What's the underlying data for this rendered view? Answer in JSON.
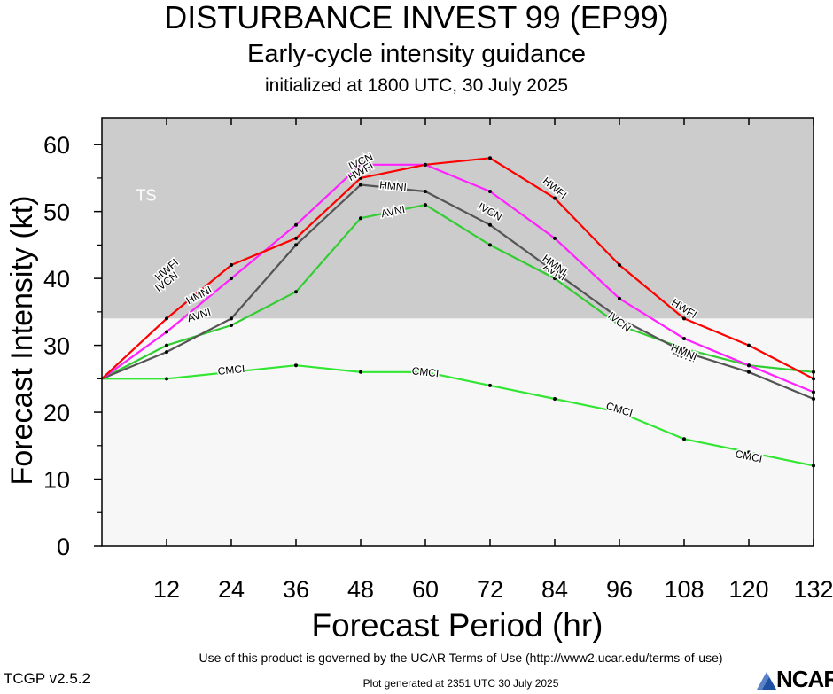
{
  "header": {
    "title": "DISTURBANCE INVEST 99 (EP99)",
    "subtitle": "Early-cycle intensity guidance",
    "initialized": "initialized at 1800 UTC, 30 July 2025"
  },
  "footer": {
    "terms": "Use of this product is governed by the UCAR Terms of Use (http://www2.ucar.edu/terms-of-use)",
    "version": "TCGP v2.5.2",
    "plot_generated": "Plot generated at 2351 UTC   30 July 2025",
    "logo_text": "NCAR",
    "logo_icon": "ncar-logo-icon"
  },
  "chart_data": {
    "type": "line",
    "xlabel": "Forecast Period (hr)",
    "ylabel": "Forecast Intensity (kt)",
    "xlim": [
      0,
      132
    ],
    "ylim": [
      0,
      64
    ],
    "xticks": [
      12,
      24,
      36,
      48,
      60,
      72,
      84,
      96,
      108,
      120,
      132
    ],
    "yticks": [
      0,
      10,
      20,
      30,
      40,
      50,
      60
    ],
    "grid": false,
    "legend": "none (series labeled inline)",
    "bands": [
      {
        "label": "TS",
        "from": 34,
        "to": 64,
        "color": "#cccccc"
      },
      {
        "label": "",
        "from": 0,
        "to": 34,
        "color": "#f7f7f7"
      }
    ],
    "series": [
      {
        "name": "CMCI",
        "color": "#33e633",
        "x": [
          0,
          12,
          24,
          36,
          48,
          60,
          72,
          84,
          96,
          108,
          120,
          132
        ],
        "y": [
          25,
          25,
          26,
          27,
          26,
          26,
          24,
          22,
          20,
          16,
          14,
          12
        ],
        "label_at": [
          [
            24,
            26.3
          ],
          [
            60,
            26
          ],
          [
            96,
            20.4
          ],
          [
            120,
            13.4
          ]
        ]
      },
      {
        "name": "AVNI",
        "color": "#33cc33",
        "x": [
          0,
          12,
          24,
          36,
          48,
          60,
          72,
          84,
          96,
          108,
          120,
          132
        ],
        "y": [
          25,
          30,
          33,
          38,
          49,
          51,
          45,
          40,
          33,
          29.5,
          27,
          26
        ],
        "label_at": [
          [
            18,
            34.5
          ],
          [
            54,
            50
          ],
          [
            84,
            41
          ],
          [
            108,
            28.5
          ]
        ]
      },
      {
        "name": "HMNI",
        "color": "#555555",
        "x": [
          0,
          12,
          24,
          36,
          48,
          60,
          72,
          84,
          96,
          108,
          120,
          132
        ],
        "y": [
          25,
          29,
          34,
          45,
          54,
          53,
          48,
          41,
          34,
          29,
          26,
          22
        ],
        "label_at": [
          [
            18,
            37.5
          ],
          [
            54,
            53.8
          ],
          [
            84,
            42
          ],
          [
            108,
            29
          ]
        ]
      },
      {
        "name": "IVCN",
        "color": "#ff22ff",
        "x": [
          0,
          12,
          24,
          36,
          48,
          60,
          72,
          84,
          96,
          108,
          120,
          132
        ],
        "y": [
          25,
          32,
          40,
          48,
          57,
          57,
          53,
          46,
          37,
          31,
          27,
          23
        ],
        "label_at": [
          [
            12,
            39.5
          ],
          [
            48,
            57.5
          ],
          [
            72,
            50
          ],
          [
            96,
            33.5
          ]
        ]
      },
      {
        "name": "HWFI",
        "color": "#ff0000",
        "x": [
          0,
          12,
          24,
          36,
          48,
          60,
          72,
          84,
          96,
          108,
          120,
          132
        ],
        "y": [
          25,
          34,
          42,
          46,
          55,
          57,
          58,
          52,
          42,
          34,
          30,
          25
        ],
        "label_at": [
          [
            12,
            41.3
          ],
          [
            48,
            56
          ],
          [
            84,
            53.5
          ],
          [
            108,
            35.5
          ]
        ]
      }
    ]
  }
}
